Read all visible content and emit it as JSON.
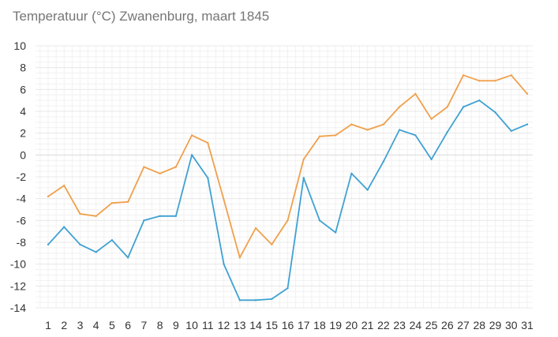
{
  "chart_data": {
    "type": "line",
    "title": "Temperatuur (°C)  Zwanenburg, maart 1845",
    "xlabel": "",
    "ylabel": "",
    "x": [
      1,
      2,
      3,
      4,
      5,
      6,
      7,
      8,
      9,
      10,
      11,
      12,
      13,
      14,
      15,
      16,
      17,
      18,
      19,
      20,
      21,
      22,
      23,
      24,
      25,
      26,
      27,
      28,
      29,
      30,
      31
    ],
    "ylim": [
      -14,
      10
    ],
    "yticks": [
      10,
      8,
      6,
      4,
      2,
      0,
      -2,
      -4,
      -6,
      -8,
      -10,
      -12,
      -14
    ],
    "grid": true,
    "legend": "none",
    "series": [
      {
        "color": "#f0a04b",
        "values": [
          -3.8,
          -2.8,
          -5.4,
          -5.6,
          -4.4,
          -4.3,
          -1.1,
          -1.7,
          -1.1,
          1.8,
          1.1,
          -4.1,
          -9.4,
          -6.7,
          -8.2,
          -6.0,
          -0.4,
          1.7,
          1.8,
          2.8,
          2.3,
          2.8,
          4.4,
          5.6,
          3.3,
          4.4,
          7.3,
          6.8,
          6.8,
          7.3,
          5.6
        ]
      },
      {
        "color": "#3fa1d2",
        "values": [
          -8.2,
          -6.6,
          -8.2,
          -8.9,
          -7.8,
          -9.4,
          -6.0,
          -5.6,
          -5.6,
          0.0,
          -2.1,
          -10.0,
          -13.3,
          -13.3,
          -13.2,
          -12.2,
          -2.1,
          -6.0,
          -7.1,
          -1.7,
          -3.2,
          -0.6,
          2.3,
          1.8,
          -0.4,
          2.1,
          4.4,
          5.0,
          3.9,
          2.2,
          2.8
        ]
      }
    ]
  }
}
